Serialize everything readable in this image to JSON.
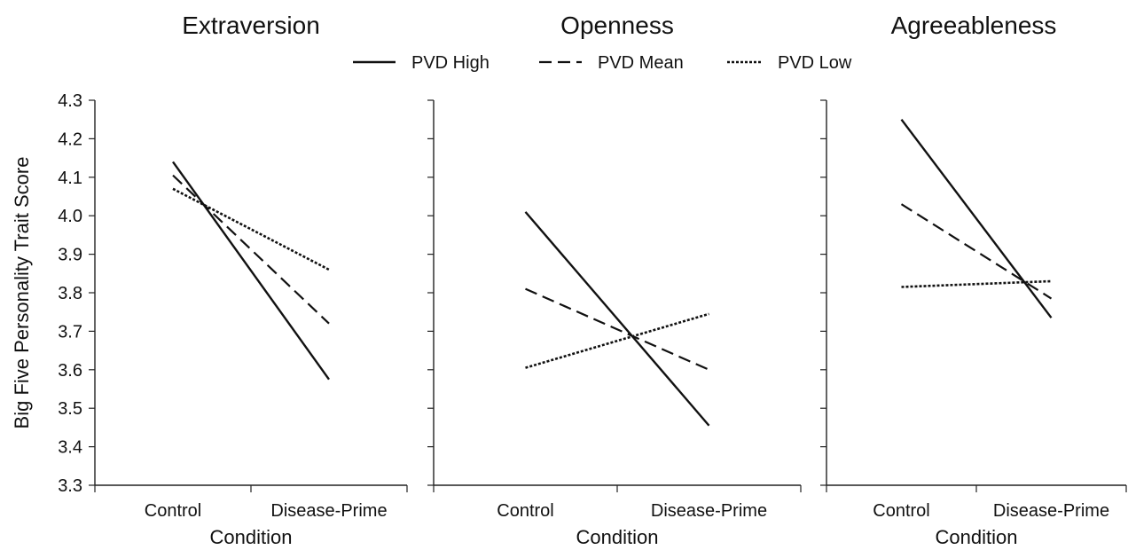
{
  "chart_data": [
    {
      "type": "line",
      "title": "Extraversion",
      "xlabel": "Condition",
      "ylabel": "Big Five Personality Trait Score",
      "categories": [
        "Control",
        "Disease-Prime"
      ],
      "ylim": [
        3.3,
        4.3
      ],
      "yticks": [
        "4.3",
        "4.2",
        "4.1",
        "4.0",
        "3.9",
        "3.8",
        "3.7",
        "3.6",
        "3.5",
        "3.4",
        "3.3"
      ],
      "series": [
        {
          "name": "PVD High",
          "values": [
            4.14,
            3.575
          ]
        },
        {
          "name": "PVD Mean",
          "values": [
            4.105,
            3.72
          ]
        },
        {
          "name": "PVD Low",
          "values": [
            4.07,
            3.86
          ]
        }
      ]
    },
    {
      "type": "line",
      "title": "Openness",
      "xlabel": "Condition",
      "ylabel": "",
      "categories": [
        "Control",
        "Disease-Prime"
      ],
      "ylim": [
        3.3,
        4.3
      ],
      "series": [
        {
          "name": "PVD High",
          "values": [
            4.01,
            3.455
          ]
        },
        {
          "name": "PVD Mean",
          "values": [
            3.81,
            3.6
          ]
        },
        {
          "name": "PVD Low",
          "values": [
            3.605,
            3.745
          ]
        }
      ]
    },
    {
      "type": "line",
      "title": "Agreeableness",
      "xlabel": "Condition",
      "ylabel": "",
      "categories": [
        "Control",
        "Disease-Prime"
      ],
      "ylim": [
        3.3,
        4.3
      ],
      "series": [
        {
          "name": "PVD High",
          "values": [
            4.25,
            3.735
          ]
        },
        {
          "name": "PVD Mean",
          "values": [
            4.03,
            3.785
          ]
        },
        {
          "name": "PVD Low",
          "values": [
            3.815,
            3.83
          ]
        }
      ]
    }
  ],
  "legend": {
    "position": "top-center",
    "items": [
      {
        "label": "PVD High",
        "style": "solid"
      },
      {
        "label": "PVD Mean",
        "style": "dashed"
      },
      {
        "label": "PVD Low",
        "style": "dotted"
      }
    ]
  },
  "colors": {
    "line": "#111111",
    "axis": "#222222",
    "background": "#ffffff"
  },
  "grid": false
}
